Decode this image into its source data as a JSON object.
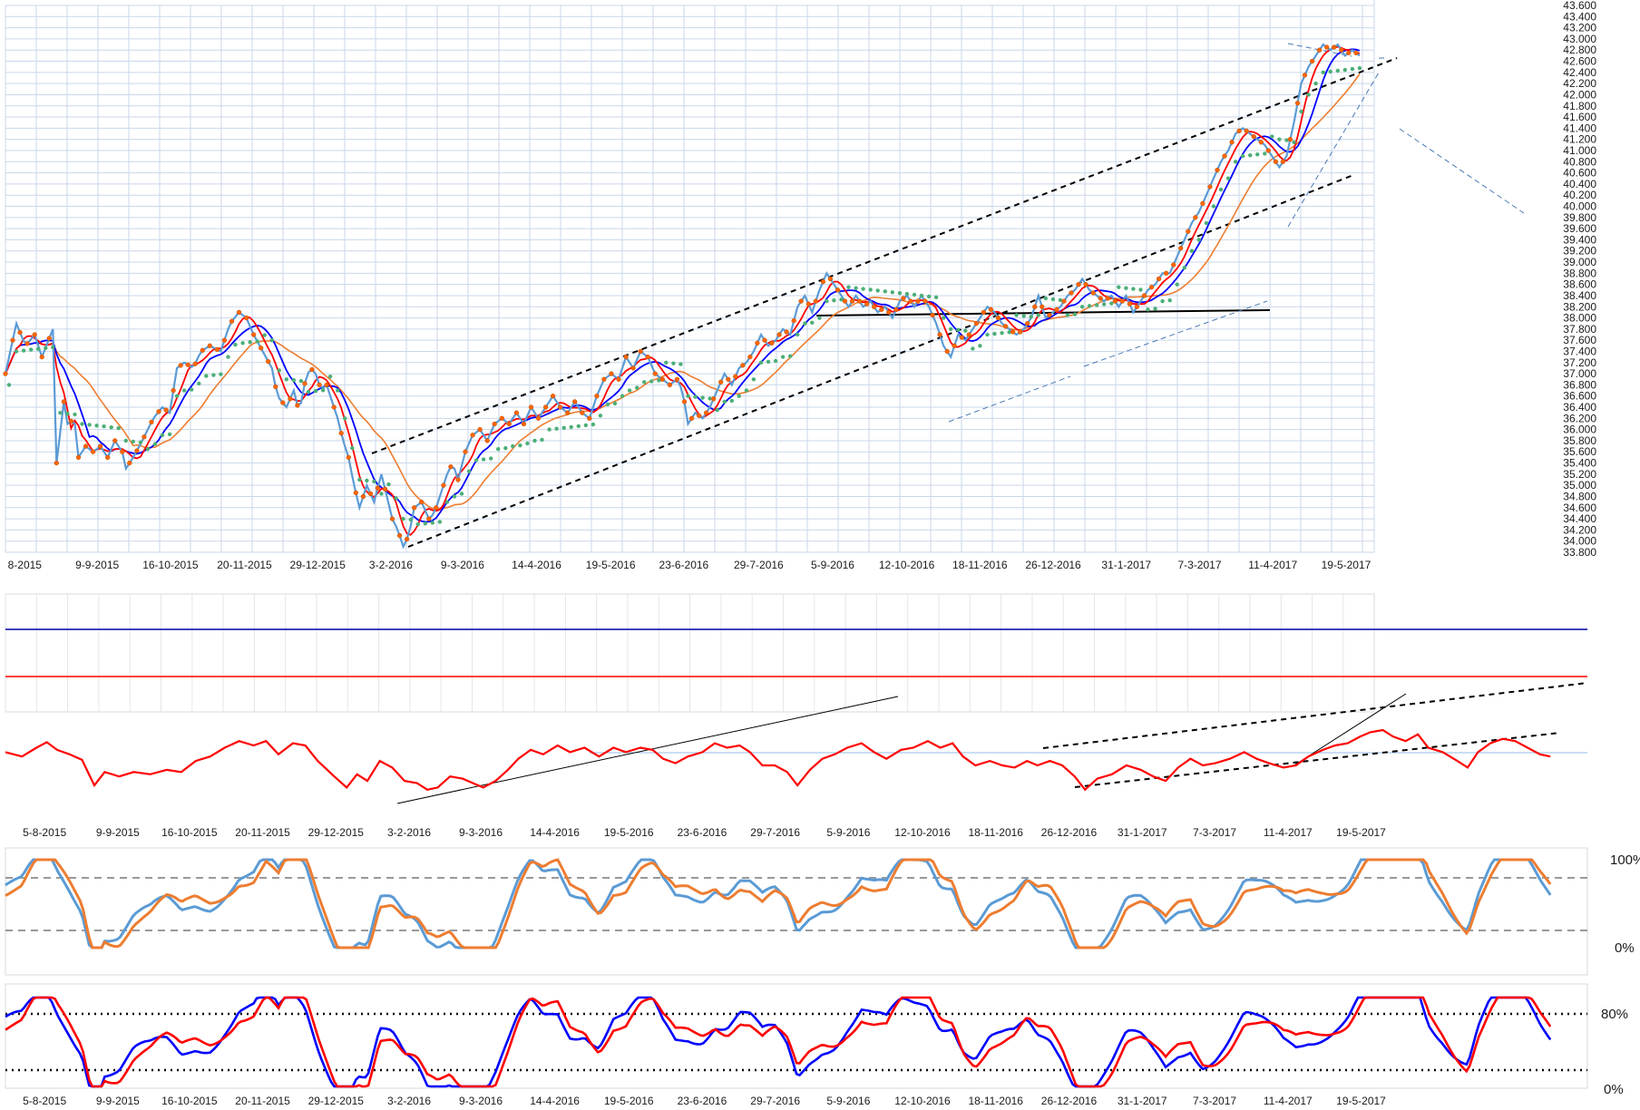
{
  "chart_data": [
    {
      "type": "line",
      "panel": "price",
      "ylim": [
        33800,
        43600
      ],
      "yticks": [
        "33.800",
        "34.000",
        "34.200",
        "34.400",
        "34.600",
        "34.800",
        "35.000",
        "35.200",
        "35.400",
        "35.600",
        "35.800",
        "36.000",
        "36.200",
        "36.400",
        "36.600",
        "36.800",
        "37.000",
        "37.200",
        "37.400",
        "37.600",
        "37.800",
        "38.000",
        "38.200",
        "38.400",
        "38.600",
        "38.800",
        "39.000",
        "39.200",
        "39.400",
        "39.600",
        "39.800",
        "40.000",
        "40.200",
        "40.400",
        "40.600",
        "40.800",
        "41.000",
        "41.200",
        "41.400",
        "41.600",
        "41.800",
        "42.000",
        "42.200",
        "42.400",
        "42.600",
        "42.800",
        "43.000",
        "43.200",
        "43.400",
        "43.600"
      ],
      "xticks": [
        "8-2015",
        "9-9-2015",
        "16-10-2015",
        "20-11-2015",
        "29-12-2015",
        "3-2-2016",
        "9-3-2016",
        "14-4-2016",
        "19-5-2016",
        "23-6-2016",
        "29-7-2016",
        "5-9-2016",
        "12-10-2016",
        "18-11-2016",
        "26-12-2016",
        "31-1-2017",
        "7-3-2017",
        "11-4-2017",
        "19-5-2017"
      ],
      "grid": true,
      "series_colors": {
        "price": "#5b9bd5",
        "markers": "#ff6600",
        "ma_fast": "#ff0000",
        "ma_mid": "#0000ff",
        "ma_slow": "#ed7d31",
        "sar": "#4caf77"
      },
      "price_path": [
        [
          0,
          37000
        ],
        [
          12,
          37900
        ],
        [
          22,
          37500
        ],
        [
          32,
          37700
        ],
        [
          40,
          37300
        ],
        [
          52,
          37800
        ],
        [
          56,
          35400
        ],
        [
          64,
          36500
        ],
        [
          70,
          35900
        ],
        [
          74,
          36400
        ],
        [
          80,
          35500
        ],
        [
          88,
          35700
        ],
        [
          96,
          35600
        ],
        [
          104,
          35700
        ],
        [
          112,
          35500
        ],
        [
          120,
          35800
        ],
        [
          128,
          35600
        ],
        [
          132,
          35300
        ],
        [
          140,
          35500
        ],
        [
          150,
          35800
        ],
        [
          162,
          36200
        ],
        [
          172,
          36400
        ],
        [
          180,
          36300
        ],
        [
          188,
          37100
        ],
        [
          196,
          37200
        ],
        [
          206,
          37100
        ],
        [
          214,
          37400
        ],
        [
          224,
          37500
        ],
        [
          236,
          37400
        ],
        [
          246,
          37900
        ],
        [
          256,
          38100
        ],
        [
          264,
          38000
        ],
        [
          272,
          37700
        ],
        [
          282,
          37400
        ],
        [
          292,
          37100
        ],
        [
          298,
          36600
        ],
        [
          308,
          36400
        ],
        [
          316,
          36700
        ],
        [
          322,
          36300
        ],
        [
          330,
          37000
        ],
        [
          338,
          37100
        ],
        [
          346,
          36700
        ],
        [
          352,
          36800
        ],
        [
          358,
          36500
        ],
        [
          364,
          36200
        ],
        [
          370,
          35800
        ],
        [
          376,
          35500
        ],
        [
          382,
          35000
        ],
        [
          388,
          34600
        ],
        [
          396,
          35000
        ],
        [
          404,
          34700
        ],
        [
          412,
          35200
        ],
        [
          418,
          34800
        ],
        [
          424,
          34400
        ],
        [
          430,
          34200
        ],
        [
          436,
          33900
        ],
        [
          442,
          34100
        ],
        [
          448,
          34600
        ],
        [
          456,
          34700
        ],
        [
          464,
          34400
        ],
        [
          470,
          34500
        ],
        [
          478,
          34900
        ],
        [
          484,
          35200
        ],
        [
          490,
          35400
        ],
        [
          496,
          35100
        ],
        [
          504,
          35600
        ],
        [
          512,
          35900
        ],
        [
          520,
          36000
        ],
        [
          528,
          35800
        ],
        [
          536,
          36100
        ],
        [
          544,
          36200
        ],
        [
          552,
          36100
        ],
        [
          560,
          36300
        ],
        [
          568,
          36100
        ],
        [
          576,
          36400
        ],
        [
          584,
          36200
        ],
        [
          592,
          36400
        ],
        [
          600,
          36600
        ],
        [
          608,
          36400
        ],
        [
          616,
          36300
        ],
        [
          624,
          36500
        ],
        [
          632,
          36300
        ],
        [
          640,
          36200
        ],
        [
          648,
          36600
        ],
        [
          656,
          36900
        ],
        [
          664,
          37000
        ],
        [
          672,
          36900
        ],
        [
          680,
          37300
        ],
        [
          688,
          37100
        ],
        [
          696,
          37400
        ],
        [
          704,
          37300
        ],
        [
          712,
          37000
        ],
        [
          720,
          36900
        ],
        [
          728,
          36800
        ],
        [
          736,
          36900
        ],
        [
          742,
          36700
        ],
        [
          748,
          36100
        ],
        [
          756,
          36300
        ],
        [
          764,
          36200
        ],
        [
          772,
          36400
        ],
        [
          780,
          36700
        ],
        [
          788,
          37000
        ],
        [
          796,
          36800
        ],
        [
          804,
          37100
        ],
        [
          812,
          37200
        ],
        [
          820,
          37400
        ],
        [
          828,
          37700
        ],
        [
          836,
          37500
        ],
        [
          844,
          37600
        ],
        [
          852,
          37800
        ],
        [
          860,
          37700
        ],
        [
          868,
          38200
        ],
        [
          876,
          38400
        ],
        [
          884,
          38100
        ],
        [
          892,
          38500
        ],
        [
          900,
          38800
        ],
        [
          908,
          38600
        ],
        [
          916,
          38400
        ],
        [
          924,
          38200
        ],
        [
          932,
          38400
        ],
        [
          940,
          38200
        ],
        [
          948,
          38300
        ],
        [
          956,
          38100
        ],
        [
          964,
          38200
        ],
        [
          972,
          38000
        ],
        [
          980,
          38300
        ],
        [
          988,
          38400
        ],
        [
          996,
          38200
        ],
        [
          1004,
          38400
        ],
        [
          1012,
          38200
        ],
        [
          1020,
          37900
        ],
        [
          1028,
          37500
        ],
        [
          1036,
          37300
        ],
        [
          1044,
          37700
        ],
        [
          1052,
          37600
        ],
        [
          1060,
          37800
        ],
        [
          1068,
          38000
        ],
        [
          1076,
          38200
        ],
        [
          1084,
          38100
        ],
        [
          1092,
          37900
        ],
        [
          1100,
          37800
        ],
        [
          1108,
          37700
        ],
        [
          1116,
          37800
        ],
        [
          1124,
          38000
        ],
        [
          1132,
          38400
        ],
        [
          1140,
          38000
        ],
        [
          1148,
          38100
        ],
        [
          1156,
          38200
        ],
        [
          1164,
          38400
        ],
        [
          1172,
          38500
        ],
        [
          1180,
          38700
        ],
        [
          1188,
          38500
        ],
        [
          1196,
          38400
        ],
        [
          1204,
          38300
        ],
        [
          1212,
          38400
        ],
        [
          1220,
          38200
        ],
        [
          1228,
          38400
        ],
        [
          1236,
          38100
        ],
        [
          1244,
          38300
        ],
        [
          1252,
          38500
        ],
        [
          1260,
          38600
        ],
        [
          1268,
          38800
        ],
        [
          1276,
          38800
        ],
        [
          1284,
          39100
        ],
        [
          1292,
          39400
        ],
        [
          1300,
          39700
        ],
        [
          1308,
          39900
        ],
        [
          1316,
          40200
        ],
        [
          1324,
          40500
        ],
        [
          1332,
          40800
        ],
        [
          1340,
          41000
        ],
        [
          1348,
          41300
        ],
        [
          1356,
          41400
        ],
        [
          1364,
          41300
        ],
        [
          1372,
          41200
        ],
        [
          1380,
          41100
        ],
        [
          1388,
          40900
        ],
        [
          1396,
          40700
        ],
        [
          1404,
          40900
        ],
        [
          1412,
          41500
        ],
        [
          1420,
          42200
        ],
        [
          1428,
          42500
        ],
        [
          1436,
          42700
        ],
        [
          1444,
          42900
        ],
        [
          1452,
          42800
        ],
        [
          1460,
          42900
        ],
        [
          1468,
          42700
        ],
        [
          1476,
          42800
        ],
        [
          1484,
          42700
        ]
      ]
    },
    {
      "type": "line",
      "panel": "rsi",
      "xticks": [
        "5-8-2015",
        "9-9-2015",
        "16-10-2015",
        "20-11-2015",
        "29-12-2015",
        "3-2-2016",
        "9-3-2016",
        "14-4-2016",
        "19-5-2016",
        "23-6-2016",
        "29-7-2016",
        "5-9-2016",
        "12-10-2016",
        "18-11-2016",
        "26-12-2016",
        "31-1-2017",
        "7-3-2017",
        "11-4-2017",
        "19-5-2017"
      ],
      "upper_level": 70,
      "lower_level": 30,
      "path": [
        [
          0,
          62
        ],
        [
          16,
          58
        ],
        [
          30,
          66
        ],
        [
          40,
          71
        ],
        [
          50,
          64
        ],
        [
          62,
          60
        ],
        [
          74,
          55
        ],
        [
          86,
          32
        ],
        [
          96,
          44
        ],
        [
          110,
          40
        ],
        [
          124,
          44
        ],
        [
          140,
          42
        ],
        [
          156,
          46
        ],
        [
          170,
          44
        ],
        [
          184,
          54
        ],
        [
          198,
          58
        ],
        [
          212,
          66
        ],
        [
          226,
          72
        ],
        [
          240,
          68
        ],
        [
          252,
          72
        ],
        [
          264,
          60
        ],
        [
          278,
          70
        ],
        [
          290,
          68
        ],
        [
          302,
          54
        ],
        [
          318,
          40
        ],
        [
          330,
          30
        ],
        [
          340,
          42
        ],
        [
          350,
          36
        ],
        [
          362,
          54
        ],
        [
          374,
          48
        ],
        [
          386,
          36
        ],
        [
          398,
          34
        ],
        [
          408,
          28
        ],
        [
          418,
          30
        ],
        [
          430,
          40
        ],
        [
          442,
          38
        ],
        [
          452,
          34
        ],
        [
          462,
          30
        ],
        [
          474,
          36
        ],
        [
          486,
          46
        ],
        [
          496,
          56
        ],
        [
          508,
          64
        ],
        [
          520,
          60
        ],
        [
          534,
          68
        ],
        [
          546,
          62
        ],
        [
          560,
          66
        ],
        [
          574,
          58
        ],
        [
          588,
          66
        ],
        [
          600,
          62
        ],
        [
          614,
          66
        ],
        [
          626,
          64
        ],
        [
          636,
          56
        ],
        [
          648,
          52
        ],
        [
          660,
          58
        ],
        [
          674,
          62
        ],
        [
          686,
          70
        ],
        [
          698,
          66
        ],
        [
          710,
          68
        ],
        [
          720,
          62
        ],
        [
          732,
          50
        ],
        [
          744,
          50
        ],
        [
          756,
          44
        ],
        [
          766,
          32
        ],
        [
          778,
          46
        ],
        [
          790,
          56
        ],
        [
          802,
          60
        ],
        [
          814,
          66
        ],
        [
          828,
          70
        ],
        [
          840,
          62
        ],
        [
          852,
          56
        ],
        [
          866,
          64
        ],
        [
          878,
          66
        ],
        [
          892,
          72
        ],
        [
          904,
          66
        ],
        [
          916,
          70
        ],
        [
          926,
          58
        ],
        [
          938,
          50
        ],
        [
          952,
          54
        ],
        [
          964,
          50
        ],
        [
          976,
          48
        ],
        [
          988,
          54
        ],
        [
          998,
          50
        ],
        [
          1010,
          54
        ],
        [
          1022,
          50
        ],
        [
          1034,
          40
        ],
        [
          1044,
          28
        ],
        [
          1056,
          38
        ],
        [
          1070,
          42
        ],
        [
          1084,
          50
        ],
        [
          1098,
          46
        ],
        [
          1110,
          40
        ],
        [
          1122,
          36
        ],
        [
          1134,
          48
        ],
        [
          1146,
          56
        ],
        [
          1158,
          50
        ],
        [
          1170,
          52
        ],
        [
          1184,
          56
        ],
        [
          1198,
          62
        ],
        [
          1210,
          56
        ],
        [
          1222,
          52
        ],
        [
          1236,
          48
        ],
        [
          1248,
          50
        ],
        [
          1260,
          58
        ],
        [
          1274,
          64
        ],
        [
          1286,
          68
        ],
        [
          1298,
          70
        ],
        [
          1310,
          76
        ],
        [
          1320,
          80
        ],
        [
          1332,
          82
        ],
        [
          1342,
          76
        ],
        [
          1354,
          72
        ],
        [
          1366,
          78
        ],
        [
          1376,
          66
        ],
        [
          1390,
          62
        ],
        [
          1404,
          54
        ],
        [
          1414,
          48
        ],
        [
          1424,
          62
        ],
        [
          1436,
          70
        ],
        [
          1448,
          74
        ],
        [
          1460,
          72
        ],
        [
          1472,
          66
        ],
        [
          1484,
          60
        ],
        [
          1494,
          58
        ]
      ]
    },
    {
      "type": "line",
      "panel": "stochastic-1",
      "ylim": [
        0,
        100
      ],
      "ytick_top": "100%",
      "ytick_bottom": "0%",
      "levels": [
        80,
        20
      ],
      "series_colors": [
        "#5b9bd5",
        "#ed7d31"
      ]
    },
    {
      "type": "line",
      "panel": "stochastic-2",
      "ylim": [
        0,
        100
      ],
      "ytick_top": "80%",
      "ytick_bottom": "0%",
      "levels": [
        80,
        20
      ],
      "series_colors": [
        "#0000ff",
        "#ff0000"
      ],
      "xticks": [
        "5-8-2015",
        "9-9-2015",
        "16-10-2015",
        "20-11-2015",
        "29-12-2015",
        "3-2-2016",
        "9-3-2016",
        "14-4-2016",
        "19-5-2016",
        "23-6-2016",
        "29-7-2016",
        "5-9-2016",
        "12-10-2016",
        "18-11-2016",
        "26-12-2016",
        "31-1-2017",
        "7-3-2017",
        "11-4-2017",
        "19-5-2017"
      ]
    }
  ]
}
